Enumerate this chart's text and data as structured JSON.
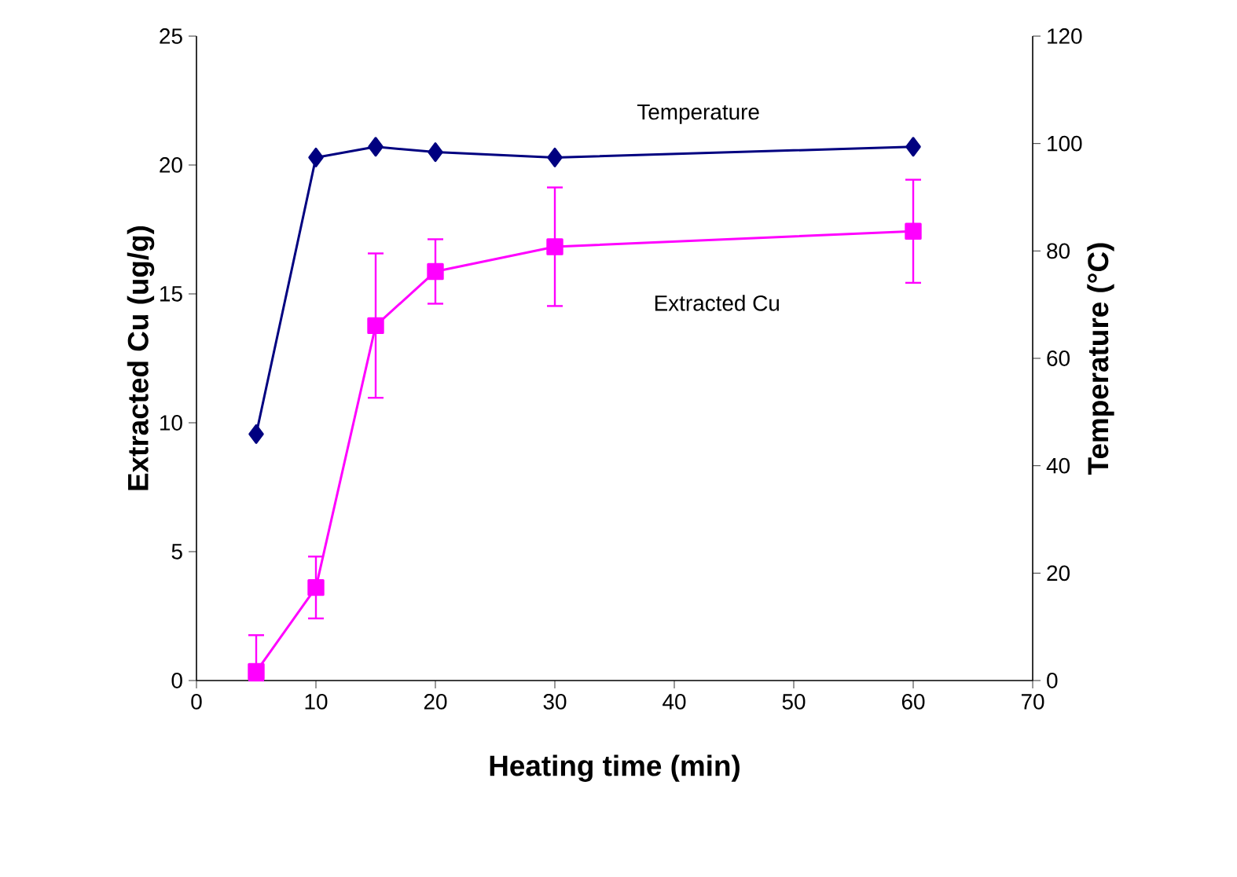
{
  "chart_data": {
    "type": "line",
    "xlabel": "Heating time (min)",
    "ylabel": "Extracted Cu (ug/g)",
    "y2label": "Temperature (°C)",
    "x": [
      5,
      10,
      15,
      20,
      30,
      60
    ],
    "xlim": [
      0,
      70
    ],
    "xticks": [
      0,
      10,
      20,
      30,
      40,
      50,
      60,
      70
    ],
    "ylim": [
      0,
      25
    ],
    "yticks": [
      0,
      5,
      10,
      15,
      20,
      25
    ],
    "y2lim": [
      0,
      120
    ],
    "y2ticks": [
      0,
      20,
      40,
      60,
      80,
      100,
      120
    ],
    "grid": false,
    "legend": false,
    "series": [
      {
        "name": "Temperature",
        "color": "#000080",
        "axis": "y2",
        "marker": "diamond",
        "values": [
          45.9,
          97.4,
          99.4,
          98.4,
          97.4,
          99.4
        ]
      },
      {
        "name": "Extracted Cu",
        "color": "#ff00ff",
        "axis": "y",
        "marker": "square",
        "values": [
          0.35,
          3.61,
          13.77,
          15.87,
          16.83,
          17.43
        ],
        "errors": [
          [
            0,
            1.76
          ],
          1.2,
          2.8,
          1.25,
          2.3,
          2.0
        ]
      }
    ]
  }
}
